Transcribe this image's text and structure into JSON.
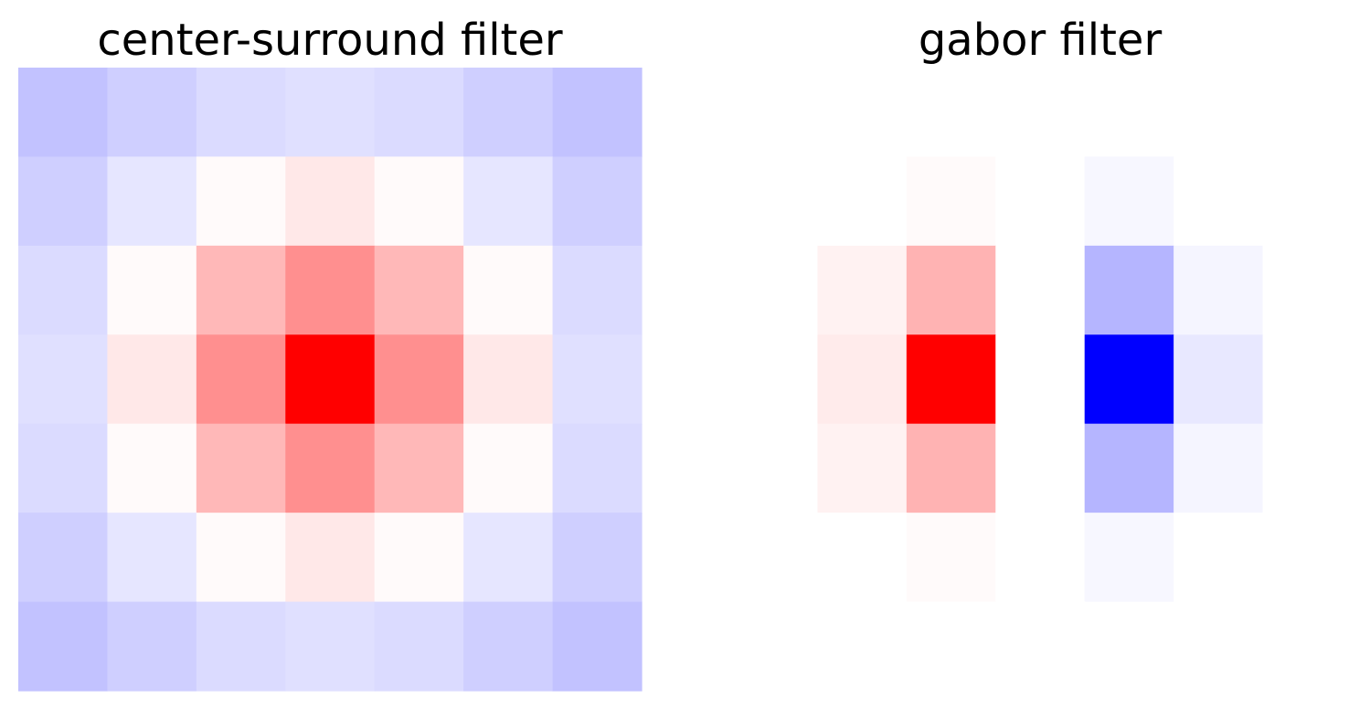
{
  "chart_data": [
    {
      "type": "heatmap",
      "title": "center-surround filter",
      "colormap": "bwr",
      "axes": "off",
      "grid": false,
      "legend": "none",
      "rows": 7,
      "cols": 7,
      "vmin": -1,
      "vmax": 1,
      "values": [
        [
          -0.24,
          -0.19,
          -0.14,
          -0.12,
          -0.14,
          -0.19,
          -0.24
        ],
        [
          -0.19,
          -0.1,
          0.02,
          0.09,
          0.02,
          -0.1,
          -0.19
        ],
        [
          -0.14,
          0.02,
          0.28,
          0.44,
          0.28,
          0.02,
          -0.14
        ],
        [
          -0.12,
          0.09,
          0.44,
          1.0,
          0.44,
          0.09,
          -0.12
        ],
        [
          -0.14,
          0.02,
          0.28,
          0.44,
          0.28,
          0.02,
          -0.14
        ],
        [
          -0.19,
          -0.1,
          0.02,
          0.09,
          0.02,
          -0.1,
          -0.19
        ],
        [
          -0.24,
          -0.19,
          -0.14,
          -0.12,
          -0.14,
          -0.19,
          -0.24
        ]
      ]
    },
    {
      "type": "heatmap",
      "title": "gabor filter",
      "colormap": "bwr",
      "axes": "off",
      "grid": false,
      "legend": "none",
      "rows": 7,
      "cols": 7,
      "vmin": -1,
      "vmax": 1,
      "values": [
        [
          0.0,
          0.0,
          0.0,
          0.0,
          0.0,
          0.0,
          0.0
        ],
        [
          0.0,
          0.0,
          0.02,
          0.0,
          -0.03,
          0.0,
          0.0
        ],
        [
          0.0,
          0.05,
          0.3,
          0.0,
          -0.29,
          -0.04,
          0.0
        ],
        [
          0.0,
          0.08,
          1.0,
          0.0,
          -1.0,
          -0.09,
          0.0
        ],
        [
          0.0,
          0.05,
          0.3,
          0.0,
          -0.29,
          -0.04,
          0.0
        ],
        [
          0.0,
          0.0,
          0.02,
          0.0,
          -0.03,
          0.0,
          0.0
        ],
        [
          0.0,
          0.0,
          0.0,
          0.0,
          0.0,
          0.0,
          0.0
        ]
      ]
    }
  ]
}
